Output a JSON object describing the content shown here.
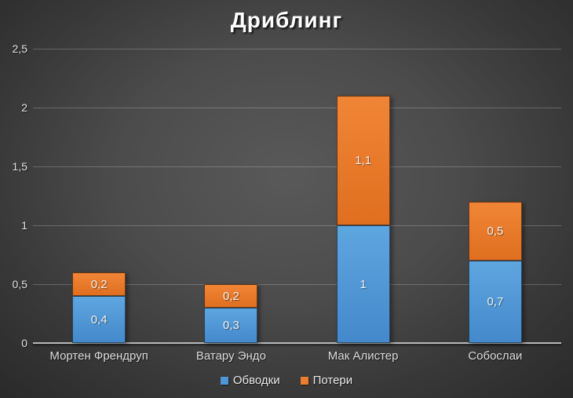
{
  "chart_data": {
    "type": "bar",
    "variant": "stacked-column",
    "title": "Дриблинг",
    "categories": [
      "Мортен Френдруп",
      "Ватару Эндо",
      "Мак Алистер",
      "Собослаи"
    ],
    "series": [
      {
        "name": "Обводки",
        "color": "#4e96d8",
        "color_gradient_top": "#5ea6e0",
        "color_gradient_bottom": "#4489cb",
        "values": [
          0.4,
          0.3,
          1,
          0.7
        ],
        "value_labels": [
          "0,4",
          "0,3",
          "1",
          "0,7"
        ]
      },
      {
        "name": "Потери",
        "color": "#ec7c2e",
        "color_gradient_top": "#f18536",
        "color_gradient_bottom": "#e06f20",
        "values": [
          0.2,
          0.2,
          1.1,
          0.5
        ],
        "value_labels": [
          "0,2",
          "0,2",
          "1,1",
          "0,5"
        ]
      }
    ],
    "y_axis": {
      "min": 0,
      "max": 2.5,
      "step": 0.5,
      "tick_labels": [
        "2,5",
        "2",
        "1,5",
        "1",
        "0,5",
        "0"
      ],
      "tick_values": [
        2.5,
        2,
        1.5,
        1,
        0.5,
        0
      ],
      "grid": true
    },
    "legend": {
      "position": "bottom",
      "entries": [
        "Обводки",
        "Потери"
      ]
    },
    "style": {
      "background_center": "#595959",
      "background_edge": "#262626",
      "gridline_color": "rgba(255,255,255,0.22)",
      "axis_line_color": "#b8b8b8",
      "title_color": "#ffffff",
      "label_color": "#f2f2f2"
    }
  }
}
